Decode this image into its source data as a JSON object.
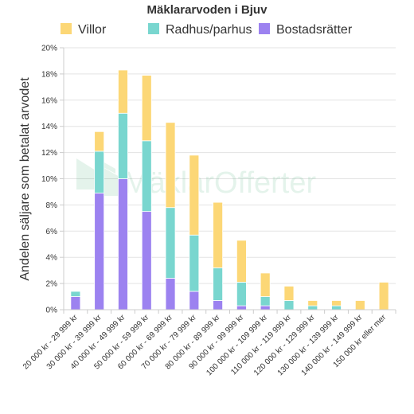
{
  "chart_data": {
    "type": "bar",
    "stacked": true,
    "title": "Mäklararvoden i Bjuv",
    "ylabel": "Andelen säljare som betalat arvodet",
    "xlabel": "",
    "ylim": [
      0,
      20
    ],
    "yticks": [
      "0%",
      "2%",
      "4%",
      "6%",
      "8%",
      "10%",
      "12%",
      "14%",
      "16%",
      "18%",
      "20%"
    ],
    "grid": true,
    "legend_position": "top",
    "categories": [
      "20 000 kr - 29 999 kr",
      "30 000 kr - 39 999 kr",
      "40 000 kr - 49 999 kr",
      "50 000 kr - 59 999 kr",
      "60 000 kr - 69 999 kr",
      "70 000 kr - 79 999 kr",
      "80 000 kr - 89 999 kr",
      "90 000 kr - 99 999 kr",
      "100 000 kr - 109 999 kr",
      "110 000 kr - 119 999 kr",
      "120 000 kr - 129 999 kr",
      "130 000 kr - 139 999 kr",
      "140 000 kr - 149 999 kr",
      "150 000 kr eller mer"
    ],
    "series": [
      {
        "name": "Bostadsrätter",
        "color": "#9c82f0",
        "values": [
          1.0,
          8.9,
          10.0,
          7.5,
          2.4,
          1.4,
          0.7,
          0.3,
          0.3,
          0.0,
          0.0,
          0.0,
          0.0,
          0.0
        ]
      },
      {
        "name": "Radhus/parhus",
        "color": "#79d6cf",
        "values": [
          0.4,
          3.2,
          5.0,
          5.4,
          5.4,
          4.3,
          2.5,
          1.8,
          0.7,
          0.7,
          0.3,
          0.3,
          0.0,
          0.0
        ]
      },
      {
        "name": "Villor",
        "color": "#fcd776",
        "values": [
          0.0,
          1.5,
          3.3,
          5.0,
          6.5,
          6.1,
          5.0,
          3.2,
          1.8,
          1.1,
          0.4,
          0.4,
          0.7,
          2.1
        ]
      }
    ],
    "legend_order": [
      "Villor",
      "Radhus/parhus",
      "Bostadsrätter"
    ]
  },
  "watermark": {
    "text": "MäklarOfferter",
    "icon": "house-logo-icon"
  }
}
